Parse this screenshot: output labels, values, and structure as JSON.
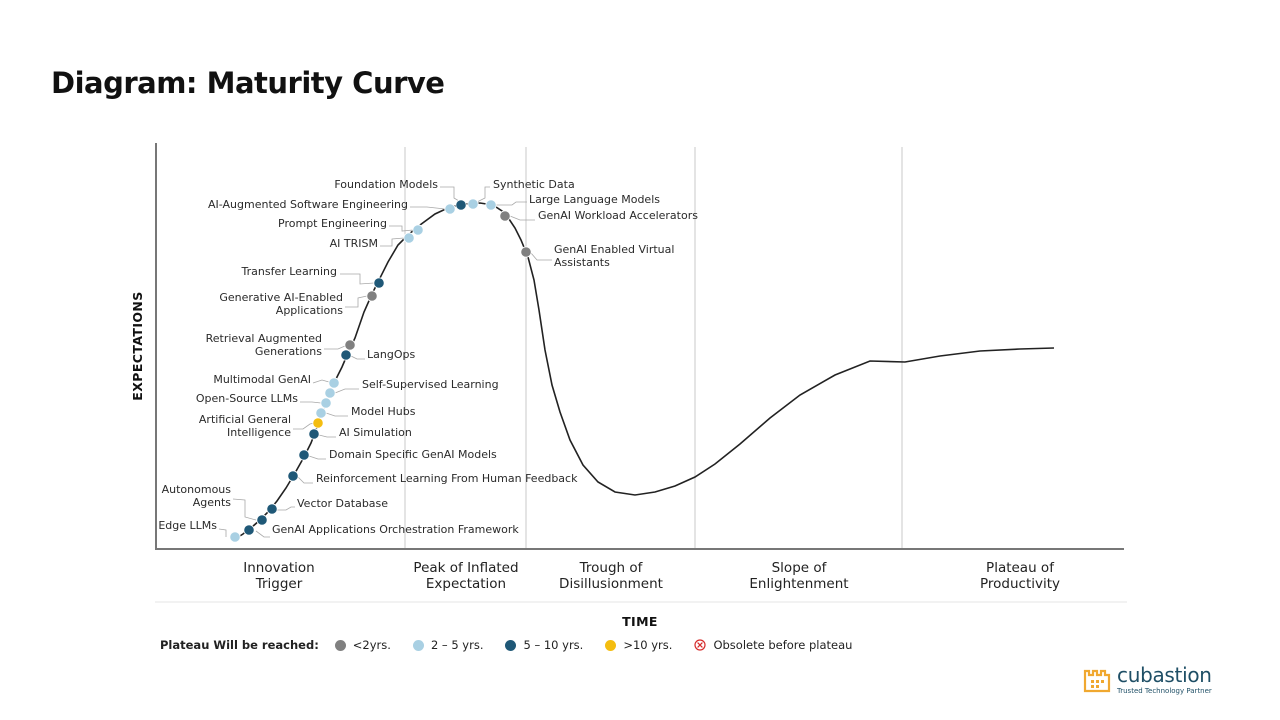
{
  "title": "Diagram: Maturity Curve",
  "colors": {
    "lt2": "#808080",
    "y2_5": "#a9d0e3",
    "y5_10": "#1f5877",
    "gt10": "#f4bd10",
    "obsolete": "#d62b2b",
    "curve": "#222222",
    "grid": "#c8c8c8"
  },
  "axes": {
    "y_title": "EXPECTATIONS",
    "x_title": "TIME"
  },
  "phases": [
    {
      "lines": [
        "Innovation",
        "Trigger"
      ]
    },
    {
      "lines": [
        "Peak of Inflated",
        "Expectation"
      ]
    },
    {
      "lines": [
        "Trough of",
        "Disillusionment"
      ]
    },
    {
      "lines": [
        "Slope of",
        "Enlightenment"
      ]
    },
    {
      "lines": [
        "Plateau of",
        "Productivity"
      ]
    }
  ],
  "technologies": [
    {
      "name": "Edge LLMs",
      "category": "2-5"
    },
    {
      "name": "GenAI Applications Orchestration Framework",
      "category": "5-10"
    },
    {
      "name": "Autonomous Agents",
      "category": "5-10"
    },
    {
      "name": "Vector Database",
      "category": "5-10"
    },
    {
      "name": "Reinforcement Learning From Human Feedback",
      "category": "5-10"
    },
    {
      "name": "Domain Specific GenAI Models",
      "category": "5-10"
    },
    {
      "name": "AI Simulation",
      "category": "5-10"
    },
    {
      "name": "Artificial General Intelligence",
      "category": ">10"
    },
    {
      "name": "Model Hubs",
      "category": "2-5"
    },
    {
      "name": "Open-Source LLMs",
      "category": "2-5"
    },
    {
      "name": "Self-Supervised Learning",
      "category": "2-5"
    },
    {
      "name": "Multimodal GenAI",
      "category": "2-5"
    },
    {
      "name": "LangOps",
      "category": "5-10"
    },
    {
      "name": "Retrieval Augmented Generations",
      "category": "<2"
    },
    {
      "name": "Generative AI-Enabled Applications",
      "category": "<2"
    },
    {
      "name": "Transfer Learning",
      "category": "5-10"
    },
    {
      "name": "AI TRISM",
      "category": "2-5"
    },
    {
      "name": "Prompt Engineering",
      "category": "2-5"
    },
    {
      "name": "AI-Augmented Software Engineering",
      "category": "2-5"
    },
    {
      "name": "Foundation Models",
      "category": "5-10"
    },
    {
      "name": "Synthetic Data",
      "category": "2-5"
    },
    {
      "name": "Large Language Models",
      "category": "2-5"
    },
    {
      "name": "GenAI Workload Accelerators",
      "category": "<2"
    },
    {
      "name": "GenAI Enabled Virtual Assistants",
      "category": "<2"
    }
  ],
  "legend": {
    "title": "Plateau Will be reached:",
    "items": [
      {
        "key": "lt2",
        "label": "<2yrs."
      },
      {
        "key": "y2_5",
        "label": "2 – 5 yrs."
      },
      {
        "key": "y5_10",
        "label": "5 – 10 yrs."
      },
      {
        "key": "gt10",
        "label": ">10 yrs."
      },
      {
        "key": "obsolete",
        "label": "Obsolete before plateau"
      }
    ]
  },
  "logo": {
    "name": "cubastion",
    "tagline": "Trusted Technology Partner"
  }
}
